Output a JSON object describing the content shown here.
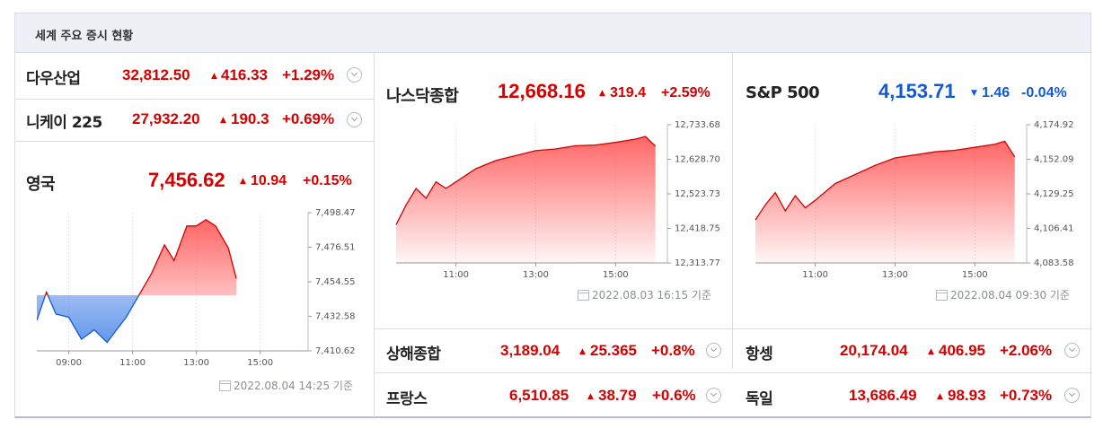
{
  "header": {
    "title": "세계 주요 증시 현황"
  },
  "rows": {
    "dow": {
      "name": "다우산업",
      "price": "32,812.50",
      "change": "416.33",
      "pct": "+1.29%",
      "dir": "up"
    },
    "nikkei": {
      "name": "니케이 225",
      "price": "27,932.20",
      "change": "190.3",
      "pct": "+0.69%",
      "dir": "up"
    },
    "shanghai": {
      "name": "상해종합",
      "price": "3,189.04",
      "change": "25.365",
      "pct": "+0.8%",
      "dir": "up"
    },
    "france": {
      "name": "프랑스",
      "price": "6,510.85",
      "change": "38.79",
      "pct": "+0.6%",
      "dir": "up"
    },
    "hangseng": {
      "name": "항셍",
      "price": "20,174.04",
      "change": "406.95",
      "pct": "+2.06%",
      "dir": "up"
    },
    "germany": {
      "name": "독일",
      "price": "13,686.49",
      "change": "98.93",
      "pct": "+0.73%",
      "dir": "up"
    }
  },
  "icons": {
    "up": "▲",
    "down": "▼",
    "expand": "chevron-down-icon",
    "calendar": "calendar-icon"
  },
  "colors": {
    "up": "#d60000",
    "down": "#1259d6",
    "fill_up": "#ff4b4b",
    "fill_down": "#4a86e8"
  },
  "chart_data": [
    {
      "id": "uk",
      "type": "area",
      "title": "영국",
      "price": "7,456.62",
      "change": "10.94",
      "pct": "+0.15%",
      "dir": "up",
      "baseline": 7446,
      "yticks": [
        "7,498.47",
        "7,476.51",
        "7,454.55",
        "7,432.58",
        "7,410.62"
      ],
      "ylim": [
        7410.62,
        7498.47
      ],
      "xticks": [
        "09:00",
        "11:00",
        "13:00",
        "15:00"
      ],
      "xtick_hours": [
        9,
        11,
        13,
        15
      ],
      "xlim": [
        8,
        16.5
      ],
      "x": [
        8.0,
        8.3,
        8.6,
        9.0,
        9.4,
        9.8,
        10.2,
        10.5,
        10.8,
        11.2,
        11.6,
        12.0,
        12.3,
        12.7,
        13.0,
        13.3,
        13.6,
        14.0,
        14.25
      ],
      "y": [
        7430,
        7448,
        7434,
        7432,
        7418,
        7424,
        7416,
        7424,
        7432,
        7446,
        7460,
        7478,
        7468,
        7490,
        7490,
        7494,
        7490,
        7476,
        7456.62
      ],
      "timestamp": "2022.08.04 14:25 기준"
    },
    {
      "id": "nasdaq",
      "type": "area",
      "title": "나스닥종합",
      "price": "12,668.16",
      "change": "319.4",
      "pct": "+2.59%",
      "dir": "up",
      "yticks": [
        "12,733.68",
        "12,628.70",
        "12,523.73",
        "12,418.75",
        "12,313.77"
      ],
      "ylim": [
        12313.77,
        12733.68
      ],
      "xticks": [
        "11:00",
        "13:00",
        "15:00"
      ],
      "xtick_hours": [
        11,
        13,
        15
      ],
      "xlim": [
        9.5,
        16.3
      ],
      "x": [
        9.5,
        9.75,
        10.0,
        10.25,
        10.5,
        10.75,
        11.0,
        11.5,
        12.0,
        12.5,
        13.0,
        13.5,
        14.0,
        14.5,
        15.0,
        15.5,
        15.75,
        16.0
      ],
      "y": [
        12430,
        12490,
        12540,
        12510,
        12560,
        12540,
        12560,
        12600,
        12625,
        12640,
        12655,
        12660,
        12670,
        12672,
        12680,
        12690,
        12698,
        12668.16
      ],
      "timestamp": "2022.08.03 16:15 기준"
    },
    {
      "id": "sp500",
      "type": "area",
      "title": "S&P 500",
      "price": "4,153.71",
      "change": "1.46",
      "pct": "-0.04%",
      "dir": "down",
      "yticks": [
        "4,174.92",
        "4,152.09",
        "4,129.25",
        "4,106.41",
        "4,083.58"
      ],
      "ylim": [
        4083.58,
        4174.92
      ],
      "xticks": [
        "11:00",
        "13:00",
        "15:00"
      ],
      "xtick_hours": [
        11,
        13,
        15
      ],
      "xlim": [
        9.5,
        16.3
      ],
      "x": [
        9.5,
        9.75,
        10.0,
        10.25,
        10.5,
        10.75,
        11.0,
        11.5,
        12.0,
        12.5,
        13.0,
        13.5,
        14.0,
        14.5,
        15.0,
        15.5,
        15.75,
        16.0
      ],
      "y": [
        4112,
        4122,
        4130,
        4118,
        4128,
        4120,
        4125,
        4136,
        4142,
        4148,
        4153,
        4155,
        4157,
        4158,
        4160,
        4162,
        4164,
        4153.71
      ],
      "timestamp": "2022.08.04 09:30 기준"
    }
  ]
}
